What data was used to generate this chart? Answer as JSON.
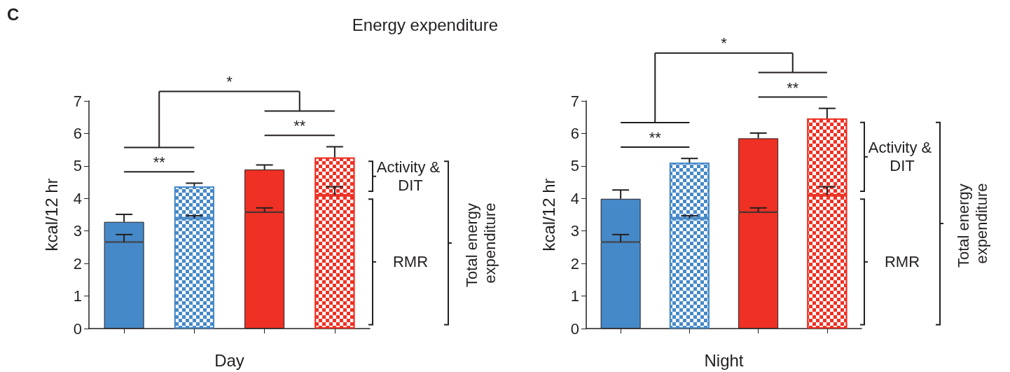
{
  "chart_data": [
    {
      "type": "bar",
      "title": "Energy expenditure",
      "xlabel": "Day",
      "ylabel": "kcal/12 hr",
      "categories": [
        null,
        null,
        null,
        null
      ],
      "stacked": true,
      "series": [
        {
          "name": "RMR",
          "colors": [
            "#4689c8",
            "#4689c8",
            "#ee3124",
            "#ee3124"
          ],
          "values": [
            2.66,
            3.39,
            3.58,
            4.1
          ],
          "errors": [
            0.23,
            0.08,
            0.13,
            0.26
          ]
        },
        {
          "name": "Activity & DIT",
          "colors": [
            "#4689c8",
            "#4689c8",
            "#ee3124",
            "#ee3124"
          ],
          "values": [
            0.62,
            0.98,
            1.31,
            1.16
          ],
          "errors": [
            0.23,
            0.1,
            0.14,
            0.33
          ]
        }
      ],
      "ylim": [
        0,
        7
      ],
      "yticks": [
        0,
        1,
        2,
        3,
        4,
        5,
        6,
        7
      ],
      "grid": false,
      "legend": "right",
      "annotations": [
        "**",
        "**",
        "*",
        "Total energy expenditure",
        "C"
      ]
    },
    {
      "type": "bar",
      "xlabel": "Night",
      "ylabel": "kcal/12 hr",
      "categories": [
        null,
        null,
        null,
        null
      ],
      "stacked": true,
      "series": [
        {
          "name": "RMR",
          "colors": [
            "#4689c8",
            "#4689c8",
            "#ee3124",
            "#ee3124"
          ],
          "values": [
            2.66,
            3.39,
            3.58,
            4.1
          ],
          "errors": [
            0.23,
            0.08,
            0.13,
            0.26
          ]
        },
        {
          "name": "Activity & DIT",
          "colors": [
            "#4689c8",
            "#4689c8",
            "#ee3124",
            "#ee3124"
          ],
          "values": [
            1.33,
            1.71,
            2.27,
            2.36
          ],
          "errors": [
            0.27,
            0.13,
            0.16,
            0.31
          ]
        }
      ],
      "ylim": [
        0,
        7
      ],
      "yticks": [
        0,
        1,
        2,
        3,
        4,
        5,
        6,
        7
      ],
      "grid": false,
      "legend": "right",
      "annotations": [
        "**",
        "**",
        "*",
        "Total energy expenditure"
      ]
    }
  ]
}
